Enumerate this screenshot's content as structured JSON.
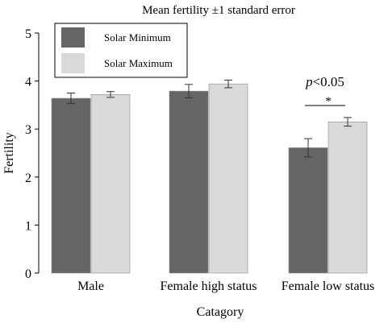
{
  "chart_data": {
    "type": "bar",
    "title": "Mean fertility ±1 standard error",
    "xlabel": "Catagory",
    "ylabel": "Fertility",
    "ylim": [
      0,
      5
    ],
    "yticks": [
      0,
      1,
      2,
      3,
      4,
      5
    ],
    "categories": [
      "Male",
      "Female high status",
      "Female low status"
    ],
    "series": [
      {
        "name": "Solar Minimum",
        "values": [
          3.64,
          3.79,
          2.61
        ],
        "errors": [
          0.11,
          0.14,
          0.19
        ],
        "color": "#656565"
      },
      {
        "name": "Solar Maximum",
        "values": [
          3.72,
          3.94,
          3.15
        ],
        "errors": [
          0.06,
          0.08,
          0.09
        ],
        "color": "#d9d9d9"
      }
    ],
    "legend": {
      "placement": "top-left"
    },
    "annotations": {
      "p_italic": "p",
      "p_rest": "<0.05",
      "star": "*"
    },
    "grid": false
  }
}
